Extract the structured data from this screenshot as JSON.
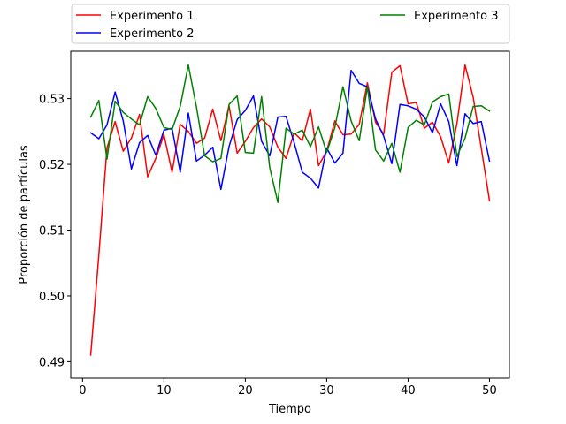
{
  "chart_data": {
    "type": "line",
    "title": "",
    "xlabel": "Tiempo",
    "ylabel": "Proporción de partículas",
    "xlim": [
      -1.45,
      52.45
    ],
    "ylim": [
      0.4875,
      0.5372
    ],
    "xticks": [
      0,
      10,
      20,
      30,
      40,
      50
    ],
    "yticks": [
      0.49,
      0.5,
      0.51,
      0.52,
      0.53
    ],
    "ytick_labels": [
      "0.49",
      "0.50",
      "0.51",
      "0.52",
      "0.53"
    ],
    "grid": false,
    "legend_placement": "top, outside plot, 2 columns",
    "x": [
      1,
      2,
      3,
      4,
      5,
      6,
      7,
      8,
      9,
      10,
      11,
      12,
      13,
      14,
      15,
      16,
      17,
      18,
      19,
      20,
      21,
      22,
      23,
      24,
      25,
      26,
      27,
      28,
      29,
      30,
      31,
      32,
      33,
      34,
      35,
      36,
      37,
      38,
      39,
      40,
      41,
      42,
      43,
      44,
      45,
      46,
      47,
      48,
      49,
      50
    ],
    "series": [
      {
        "name": "Experimento 1",
        "color": "#ff0000",
        "values": [
          0.491,
          0.5062,
          0.5225,
          0.5265,
          0.522,
          0.524,
          0.5276,
          0.5181,
          0.5209,
          0.5245,
          0.5188,
          0.5261,
          0.525,
          0.5232,
          0.524,
          0.5284,
          0.5236,
          0.5289,
          0.5217,
          0.5235,
          0.5256,
          0.5269,
          0.5257,
          0.5226,
          0.5209,
          0.5248,
          0.5236,
          0.5284,
          0.5198,
          0.522,
          0.5266,
          0.5245,
          0.5246,
          0.5261,
          0.5324,
          0.5264,
          0.5246,
          0.534,
          0.535,
          0.5292,
          0.5294,
          0.5255,
          0.5264,
          0.5242,
          0.5202,
          0.5262,
          0.5351,
          0.5302,
          0.5224,
          0.5145
        ]
      },
      {
        "name": "Experimento 2",
        "color": "#0000ff",
        "values": [
          0.5248,
          0.5239,
          0.526,
          0.531,
          0.5266,
          0.5193,
          0.5233,
          0.5244,
          0.5214,
          0.5252,
          0.5255,
          0.5188,
          0.5278,
          0.5205,
          0.5214,
          0.5226,
          0.5162,
          0.5227,
          0.5268,
          0.5282,
          0.5304,
          0.5235,
          0.5213,
          0.5272,
          0.5273,
          0.5233,
          0.5188,
          0.5179,
          0.5164,
          0.5225,
          0.5202,
          0.5217,
          0.5343,
          0.5323,
          0.5318,
          0.5269,
          0.5243,
          0.5201,
          0.5291,
          0.5289,
          0.5284,
          0.5272,
          0.5248,
          0.5292,
          0.5265,
          0.5198,
          0.5277,
          0.5262,
          0.5265,
          0.5205
        ]
      },
      {
        "name": "Experimento 3",
        "color": "#008000",
        "values": [
          0.5272,
          0.5297,
          0.5208,
          0.5296,
          0.5279,
          0.5269,
          0.526,
          0.5303,
          0.5285,
          0.5256,
          0.5253,
          0.5288,
          0.5351,
          0.5287,
          0.5213,
          0.5204,
          0.5209,
          0.5291,
          0.5304,
          0.5218,
          0.5217,
          0.5303,
          0.5195,
          0.5142,
          0.5255,
          0.5246,
          0.5252,
          0.5227,
          0.5257,
          0.5218,
          0.5256,
          0.5318,
          0.5266,
          0.5236,
          0.5318,
          0.5222,
          0.5205,
          0.5232,
          0.5188,
          0.5256,
          0.5267,
          0.526,
          0.5295,
          0.5303,
          0.5307,
          0.5212,
          0.524,
          0.5288,
          0.5289,
          0.5281
        ]
      }
    ]
  }
}
